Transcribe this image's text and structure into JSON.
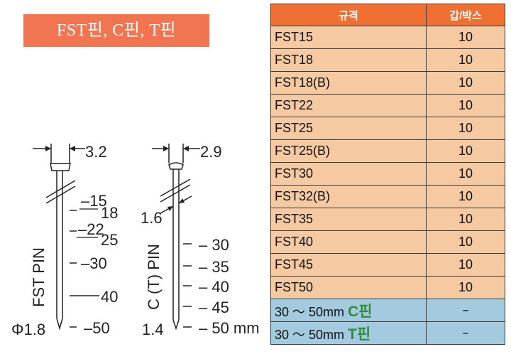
{
  "title": "FST핀, C핀, T핀",
  "drawing": {
    "fst": {
      "head_width": "3.2",
      "diameter": "Φ1.8",
      "vertical_label": "FST PIN",
      "length_marks": [
        {
          "left": "15",
          "right": "18"
        },
        {
          "left": "22",
          "right": "25"
        },
        {
          "left": "30",
          "right": ""
        },
        {
          "left": "",
          "right": "40"
        },
        {
          "left": "50",
          "right": ""
        }
      ]
    },
    "ct": {
      "head_width": "2.9",
      "shank_width": "1.6",
      "diameter": "1.4",
      "vertical_label": "C (T) PIN",
      "length_marks": [
        "30",
        "35",
        "40",
        "45",
        "50 mm"
      ]
    }
  },
  "table": {
    "headers": {
      "spec": "규격",
      "qty": "갑/박스"
    },
    "rows": [
      {
        "name": "FST15",
        "qty": "10"
      },
      {
        "name": "FST18",
        "qty": "10"
      },
      {
        "name": "FST18(B)",
        "qty": "10"
      },
      {
        "name": "FST22",
        "qty": "10"
      },
      {
        "name": "FST25",
        "qty": "10"
      },
      {
        "name": "FST25(B)",
        "qty": "10"
      },
      {
        "name": "FST30",
        "qty": "10"
      },
      {
        "name": "FST32(B)",
        "qty": "10"
      },
      {
        "name": "FST35",
        "qty": "10"
      },
      {
        "name": "FST40",
        "qty": "10"
      },
      {
        "name": "FST45",
        "qty": "10"
      },
      {
        "name": "FST50",
        "qty": "10"
      }
    ],
    "pin_rows": [
      {
        "range": "30 ～ 50mm",
        "letter": "C",
        "suffix": "핀",
        "qty": "–"
      },
      {
        "range": "30 ～ 50mm",
        "letter": "T",
        "suffix": "핀",
        "qty": "–"
      }
    ]
  },
  "colors": {
    "title_bg": "#f07550",
    "header_bg": "#f07034",
    "row_bg": "#f5c9a1",
    "pin_row_bg": "#a4cadf",
    "pin_letter": "#2d8f3a"
  }
}
